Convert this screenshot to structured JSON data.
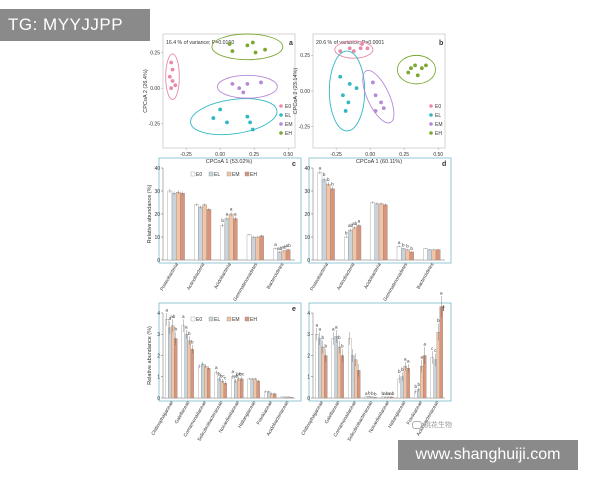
{
  "watermark_tag": "TG: MYYJJPP",
  "watermark_url": "www.shanghuiji.com",
  "watermark_small": "桃花生物",
  "colors": {
    "E0": "#e88aa6",
    "EL": "#30b8c4",
    "EM": "#b58ad6",
    "EH": "#7aa832",
    "frame": "#7ab8cc",
    "bar_E0": "#ffffff",
    "bar_EL": "#c9d3dc",
    "bar_EM": "#f2c4a4",
    "bar_EH": "#d9957c"
  },
  "chart_data": [
    {
      "type": "scatter",
      "panel": "a",
      "annotation": "16.4 % of variance; P=0.0160",
      "xlabel": "CPCoA 1 (53.02%)",
      "ylabel": "CPCoA 2 (26.4%)",
      "xlim": [
        -0.42,
        0.55
      ],
      "ylim": [
        -0.42,
        0.38
      ],
      "xticks": [
        {
          "v": -0.25,
          "t": "-0.25"
        },
        {
          "v": 0,
          "t": "0.00"
        },
        {
          "v": 0.25,
          "t": "0.25"
        },
        {
          "v": 0.5,
          "t": "0.50"
        }
      ],
      "yticks": [
        {
          "v": 0.25,
          "t": "0.25"
        },
        {
          "v": 0,
          "t": "0.00"
        },
        {
          "v": -0.25,
          "t": "-0.25"
        }
      ],
      "legend": [
        "E0",
        "EL",
        "EM",
        "EH"
      ],
      "groups": [
        {
          "name": "E0",
          "points": [
            [
              -0.36,
              0.18
            ],
            [
              -0.35,
              0.13
            ],
            [
              -0.37,
              0.08
            ],
            [
              -0.35,
              0.05
            ],
            [
              -0.33,
              0.02
            ],
            [
              -0.36,
              0.0
            ]
          ],
          "ellipse": [
            -0.35,
            0.08,
            0.05,
            0.16,
            0
          ]
        },
        {
          "name": "EL",
          "points": [
            [
              0.0,
              -0.15
            ],
            [
              -0.05,
              -0.21
            ],
            [
              0.05,
              -0.24
            ],
            [
              0.2,
              -0.2
            ],
            [
              0.22,
              -0.24
            ],
            [
              0.24,
              -0.29
            ]
          ],
          "ellipse": [
            0.1,
            -0.2,
            0.32,
            0.12,
            -8
          ]
        },
        {
          "name": "EM",
          "points": [
            [
              0.09,
              0.03
            ],
            [
              0.14,
              0.0
            ],
            [
              0.2,
              0.03
            ],
            [
              0.3,
              0.04
            ],
            [
              0.17,
              -0.03
            ]
          ],
          "ellipse": [
            0.2,
            0.01,
            0.22,
            0.08,
            0
          ]
        },
        {
          "name": "EH",
          "points": [
            [
              0.07,
              0.31
            ],
            [
              0.09,
              0.26
            ],
            [
              0.2,
              0.3
            ],
            [
              0.26,
              0.25
            ],
            [
              0.24,
              0.32
            ],
            [
              0.33,
              0.27
            ]
          ],
          "ellipse": [
            0.2,
            0.29,
            0.26,
            0.09,
            0
          ]
        }
      ]
    },
    {
      "type": "scatter",
      "panel": "b",
      "annotation": "20.6 % of variance; P=0.0001",
      "xlabel": "CPCoA 1 (60.11%)",
      "ylabel": "CPCoA 2 (23.14%)",
      "xlim": [
        -0.42,
        0.55
      ],
      "ylim": [
        -0.4,
        0.4
      ],
      "xticks": [
        {
          "v": -0.25,
          "t": "-0.25"
        },
        {
          "v": 0,
          "t": "0.00"
        },
        {
          "v": 0.25,
          "t": "0.25"
        },
        {
          "v": 0.5,
          "t": "0.50"
        }
      ],
      "yticks": [
        {
          "v": 0.25,
          "t": "0.25"
        },
        {
          "v": 0,
          "t": "0.00"
        },
        {
          "v": -0.25,
          "t": "-0.25"
        }
      ],
      "legend": [
        "E0",
        "EL",
        "EM",
        "EH"
      ],
      "groups": [
        {
          "name": "E0",
          "points": [
            [
              -0.22,
              0.28
            ],
            [
              -0.15,
              0.3
            ],
            [
              -0.07,
              0.3
            ],
            [
              -0.06,
              0.33
            ],
            [
              -0.02,
              0.3
            ],
            [
              -0.12,
              0.28
            ]
          ],
          "ellipse": [
            -0.12,
            0.29,
            0.14,
            0.06,
            0
          ]
        },
        {
          "name": "EL",
          "points": [
            [
              -0.22,
              0.1
            ],
            [
              -0.15,
              0.05
            ],
            [
              -0.2,
              -0.03
            ],
            [
              -0.16,
              -0.08
            ],
            [
              -0.1,
              0.02
            ],
            [
              -0.18,
              -0.14
            ]
          ],
          "ellipse": [
            -0.17,
            0.0,
            0.13,
            0.28,
            0
          ]
        },
        {
          "name": "EM",
          "points": [
            [
              0.02,
              0.06
            ],
            [
              0.04,
              -0.03
            ],
            [
              0.08,
              -0.08
            ],
            [
              0.1,
              -0.12
            ],
            [
              0.04,
              -0.14
            ]
          ],
          "ellipse": [
            0.06,
            -0.04,
            0.08,
            0.2,
            -25
          ]
        },
        {
          "name": "EH",
          "points": [
            [
              0.28,
              0.13
            ],
            [
              0.33,
              0.18
            ],
            [
              0.38,
              0.16
            ],
            [
              0.41,
              0.18
            ],
            [
              0.35,
              0.11
            ],
            [
              0.3,
              0.16
            ]
          ],
          "ellipse": [
            0.34,
            0.15,
            0.14,
            0.1,
            0
          ]
        }
      ]
    },
    {
      "type": "bar",
      "panel": "c",
      "ylabel": "Relative abundance (%)",
      "ylim": [
        0,
        40
      ],
      "yticks": [
        0,
        10,
        20,
        30,
        40
      ],
      "categories": [
        "Proteobacteria",
        "Actinobacteria",
        "Acidobacteria",
        "Gemmatimonadetes",
        "Bacteroidetes"
      ],
      "legend": [
        "E0",
        "EL",
        "EM",
        "EH"
      ],
      "series": [
        {
          "name": "E0",
          "values": [
            30,
            24,
            15,
            11,
            5
          ],
          "errors": [
            0.8,
            0.6,
            0.8,
            0.4,
            0.4
          ]
        },
        {
          "name": "EL",
          "values": [
            29,
            23,
            18,
            10,
            3.5
          ],
          "errors": [
            0.8,
            0.6,
            0.8,
            0.4,
            0.3
          ]
        },
        {
          "name": "EM",
          "values": [
            29.5,
            24,
            20,
            10,
            4
          ],
          "errors": [
            0.8,
            0.6,
            0.8,
            0.4,
            0.4
          ]
        },
        {
          "name": "EH",
          "values": [
            29,
            22,
            18,
            10.5,
            4.5
          ],
          "errors": [
            0.8,
            0.6,
            0.8,
            0.4,
            0.4
          ]
        }
      ],
      "letters": [
        [],
        [],
        [
          "b",
          "a",
          "a",
          "a"
        ],
        [],
        [
          "a",
          "ab",
          "ab",
          "ab"
        ]
      ]
    },
    {
      "type": "bar",
      "panel": "d",
      "ylabel": "",
      "ylim": [
        0,
        40
      ],
      "yticks": [
        0,
        10,
        20,
        30,
        40
      ],
      "categories": [
        "Proteobacteria",
        "Actinobacteria",
        "Acidobacteria",
        "Gemmatimonadetes",
        "Bacteroidetes"
      ],
      "legend": [],
      "series": [
        {
          "name": "E0",
          "values": [
            38,
            10,
            25,
            6,
            5
          ],
          "errors": [
            0.8,
            0.5,
            0.6,
            0.4,
            0.3
          ]
        },
        {
          "name": "EL",
          "values": [
            35,
            13,
            24.5,
            5,
            4.5
          ],
          "errors": [
            0.8,
            0.6,
            0.6,
            0.3,
            0.3
          ]
        },
        {
          "name": "EM",
          "values": [
            33,
            14,
            24.5,
            4.5,
            4.5
          ],
          "errors": [
            0.8,
            0.6,
            0.6,
            0.3,
            0.3
          ]
        },
        {
          "name": "EH",
          "values": [
            31,
            15,
            24,
            3.5,
            4.5
          ],
          "errors": [
            0.8,
            0.6,
            0.6,
            0.3,
            0.3
          ]
        }
      ],
      "letters": [
        [
          "a",
          "b",
          "b",
          "b"
        ],
        [
          "b",
          "ab",
          "ab",
          "a"
        ],
        [],
        [
          "a",
          "b",
          "b",
          "b"
        ],
        []
      ]
    },
    {
      "type": "bar",
      "panel": "e",
      "ylabel": "Relative abundance (%)",
      "ylim": [
        0,
        4
      ],
      "yticks": [
        0,
        1,
        2,
        3,
        4
      ],
      "categories": [
        "Chitinophagaceae",
        "Gaiellaceae",
        "Comamonadaceae",
        "Solirubrobacteraceae",
        "Nocardioidaceae",
        "Haliangiaceae",
        "Frankiaceae",
        "Acidobacteriaceae"
      ],
      "legend": [
        "E0",
        "EL",
        "EM",
        "EH"
      ],
      "series": [
        {
          "name": "E0",
          "values": [
            3.7,
            3.4,
            1.5,
            1.2,
            1.0,
            0.9,
            0.3,
            0.05
          ],
          "errors": [
            0.3,
            0.3,
            0.1,
            0.1,
            0.1,
            0.05,
            0.05,
            0.02
          ]
        },
        {
          "name": "EL",
          "values": [
            3.3,
            3.0,
            1.6,
            0.9,
            0.8,
            0.9,
            0.3,
            0.05
          ],
          "errors": [
            0.3,
            0.2,
            0.1,
            0.1,
            0.1,
            0.05,
            0.05,
            0.02
          ]
        },
        {
          "name": "EM",
          "values": [
            3.4,
            2.7,
            1.5,
            0.8,
            0.9,
            0.9,
            0.2,
            0.05
          ],
          "errors": [
            0.3,
            0.2,
            0.1,
            0.1,
            0.1,
            0.05,
            0.05,
            0.02
          ]
        },
        {
          "name": "EH",
          "values": [
            2.8,
            2.3,
            1.4,
            0.7,
            0.9,
            0.8,
            0.2,
            0.03
          ],
          "errors": [
            0.3,
            0.2,
            0.1,
            0.1,
            0.1,
            0.05,
            0.05,
            0.02
          ]
        }
      ],
      "letters": [
        [
          "a",
          "a",
          "ab",
          "b"
        ],
        [
          "a",
          "a",
          "b",
          "b"
        ],
        [],
        [
          "a",
          "b",
          "bc",
          "c"
        ],
        [
          "a",
          "ab",
          "bc",
          "bc"
        ],
        [],
        [],
        []
      ]
    },
    {
      "type": "bar",
      "panel": "f",
      "ylabel": "",
      "ylim": [
        0,
        4
      ],
      "yticks": [
        0,
        1,
        2,
        3,
        4
      ],
      "categories": [
        "Chitinophagaceae",
        "Gaiellaceae",
        "Comamonadaceae",
        "Solirubrobacteraceae",
        "Nocardioidaceae",
        "Haliangiaceae",
        "Frankiaceae",
        "Acidobacteriaceae"
      ],
      "legend": [],
      "series": [
        {
          "name": "E0",
          "values": [
            3.0,
            2.8,
            2.8,
            0.05,
            0.05,
            0.9,
            0.3,
            1.9
          ],
          "errors": [
            0.3,
            0.3,
            0.3,
            0.02,
            0.02,
            0.2,
            0.1,
            0.3
          ]
        },
        {
          "name": "EL",
          "values": [
            2.8,
            2.9,
            2.0,
            0.08,
            0.05,
            1.0,
            0.4,
            1.8
          ],
          "errors": [
            0.3,
            0.3,
            0.3,
            0.02,
            0.02,
            0.2,
            0.1,
            0.3
          ]
        },
        {
          "name": "EM",
          "values": [
            2.4,
            2.4,
            1.8,
            0.05,
            0.05,
            1.5,
            1.5,
            3.1
          ],
          "errors": [
            0.3,
            0.3,
            0.3,
            0.02,
            0.02,
            0.2,
            0.3,
            0.4
          ]
        },
        {
          "name": "EH",
          "values": [
            2.0,
            2.0,
            1.3,
            0.03,
            0.05,
            1.4,
            2.0,
            4.3
          ],
          "errors": [
            0.3,
            0.3,
            0.3,
            0.02,
            0.02,
            0.2,
            0.4,
            0.5
          ]
        }
      ],
      "letters": [
        [
          "a",
          "a",
          "b",
          "b"
        ],
        [
          "a",
          "a",
          "b",
          "b"
        ],
        [],
        [
          "a",
          "b",
          "b",
          "b"
        ],
        [
          "b",
          "ab",
          "a",
          "ab"
        ],
        [
          "b",
          "b",
          "a",
          "a"
        ],
        [
          "b",
          "b",
          "a",
          "a"
        ],
        [
          "c",
          "c",
          "b",
          "a"
        ]
      ]
    }
  ]
}
